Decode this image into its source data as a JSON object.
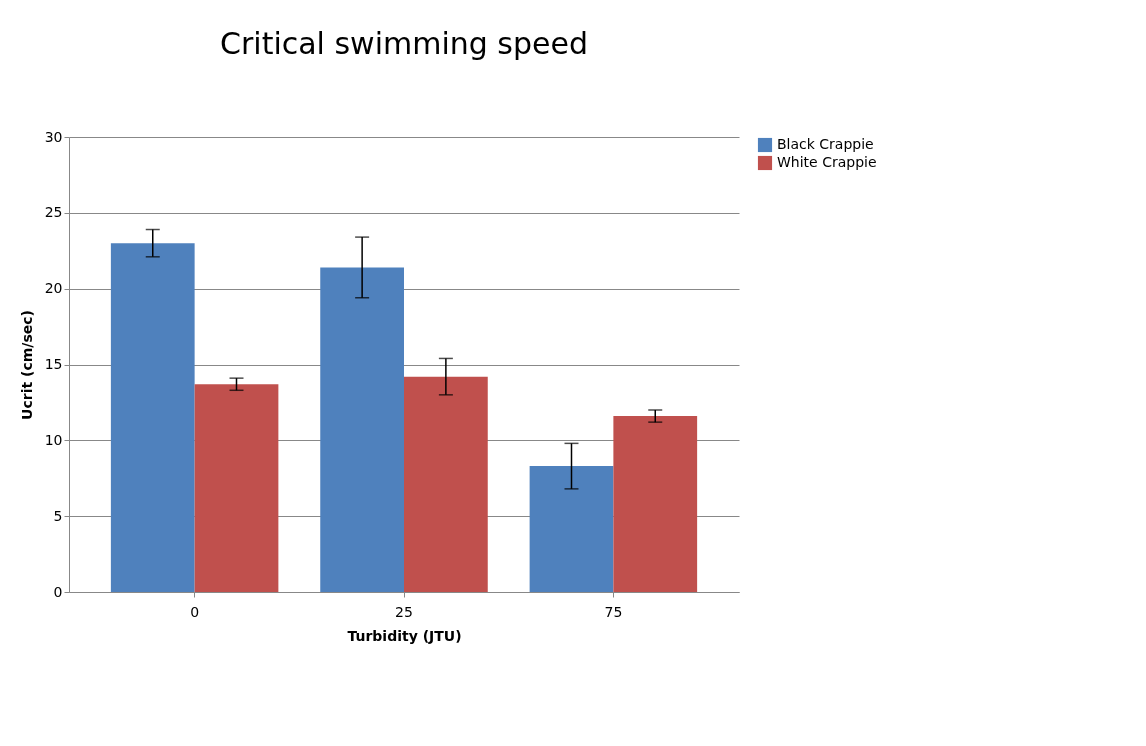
{
  "chart_data": {
    "type": "bar",
    "title": "Critical swimming speed",
    "xlabel": "Turbidity (JTU)",
    "ylabel": "Ucrit (cm/sec)",
    "categories": [
      "0",
      "25",
      "75"
    ],
    "series": [
      {
        "name": "Black Crappie",
        "color": "#4f81bd",
        "values": [
          23.0,
          21.4,
          8.3
        ],
        "errors": [
          0.9,
          2.0,
          1.5
        ]
      },
      {
        "name": "White  Crappie",
        "color": "#c0504d",
        "values": [
          13.7,
          14.2,
          11.6
        ],
        "errors": [
          0.4,
          1.2,
          0.4
        ]
      }
    ],
    "ylim": [
      0,
      30
    ],
    "yticks": [
      0,
      5,
      10,
      15,
      20,
      25,
      30
    ],
    "grid": "y",
    "legend": "right"
  }
}
